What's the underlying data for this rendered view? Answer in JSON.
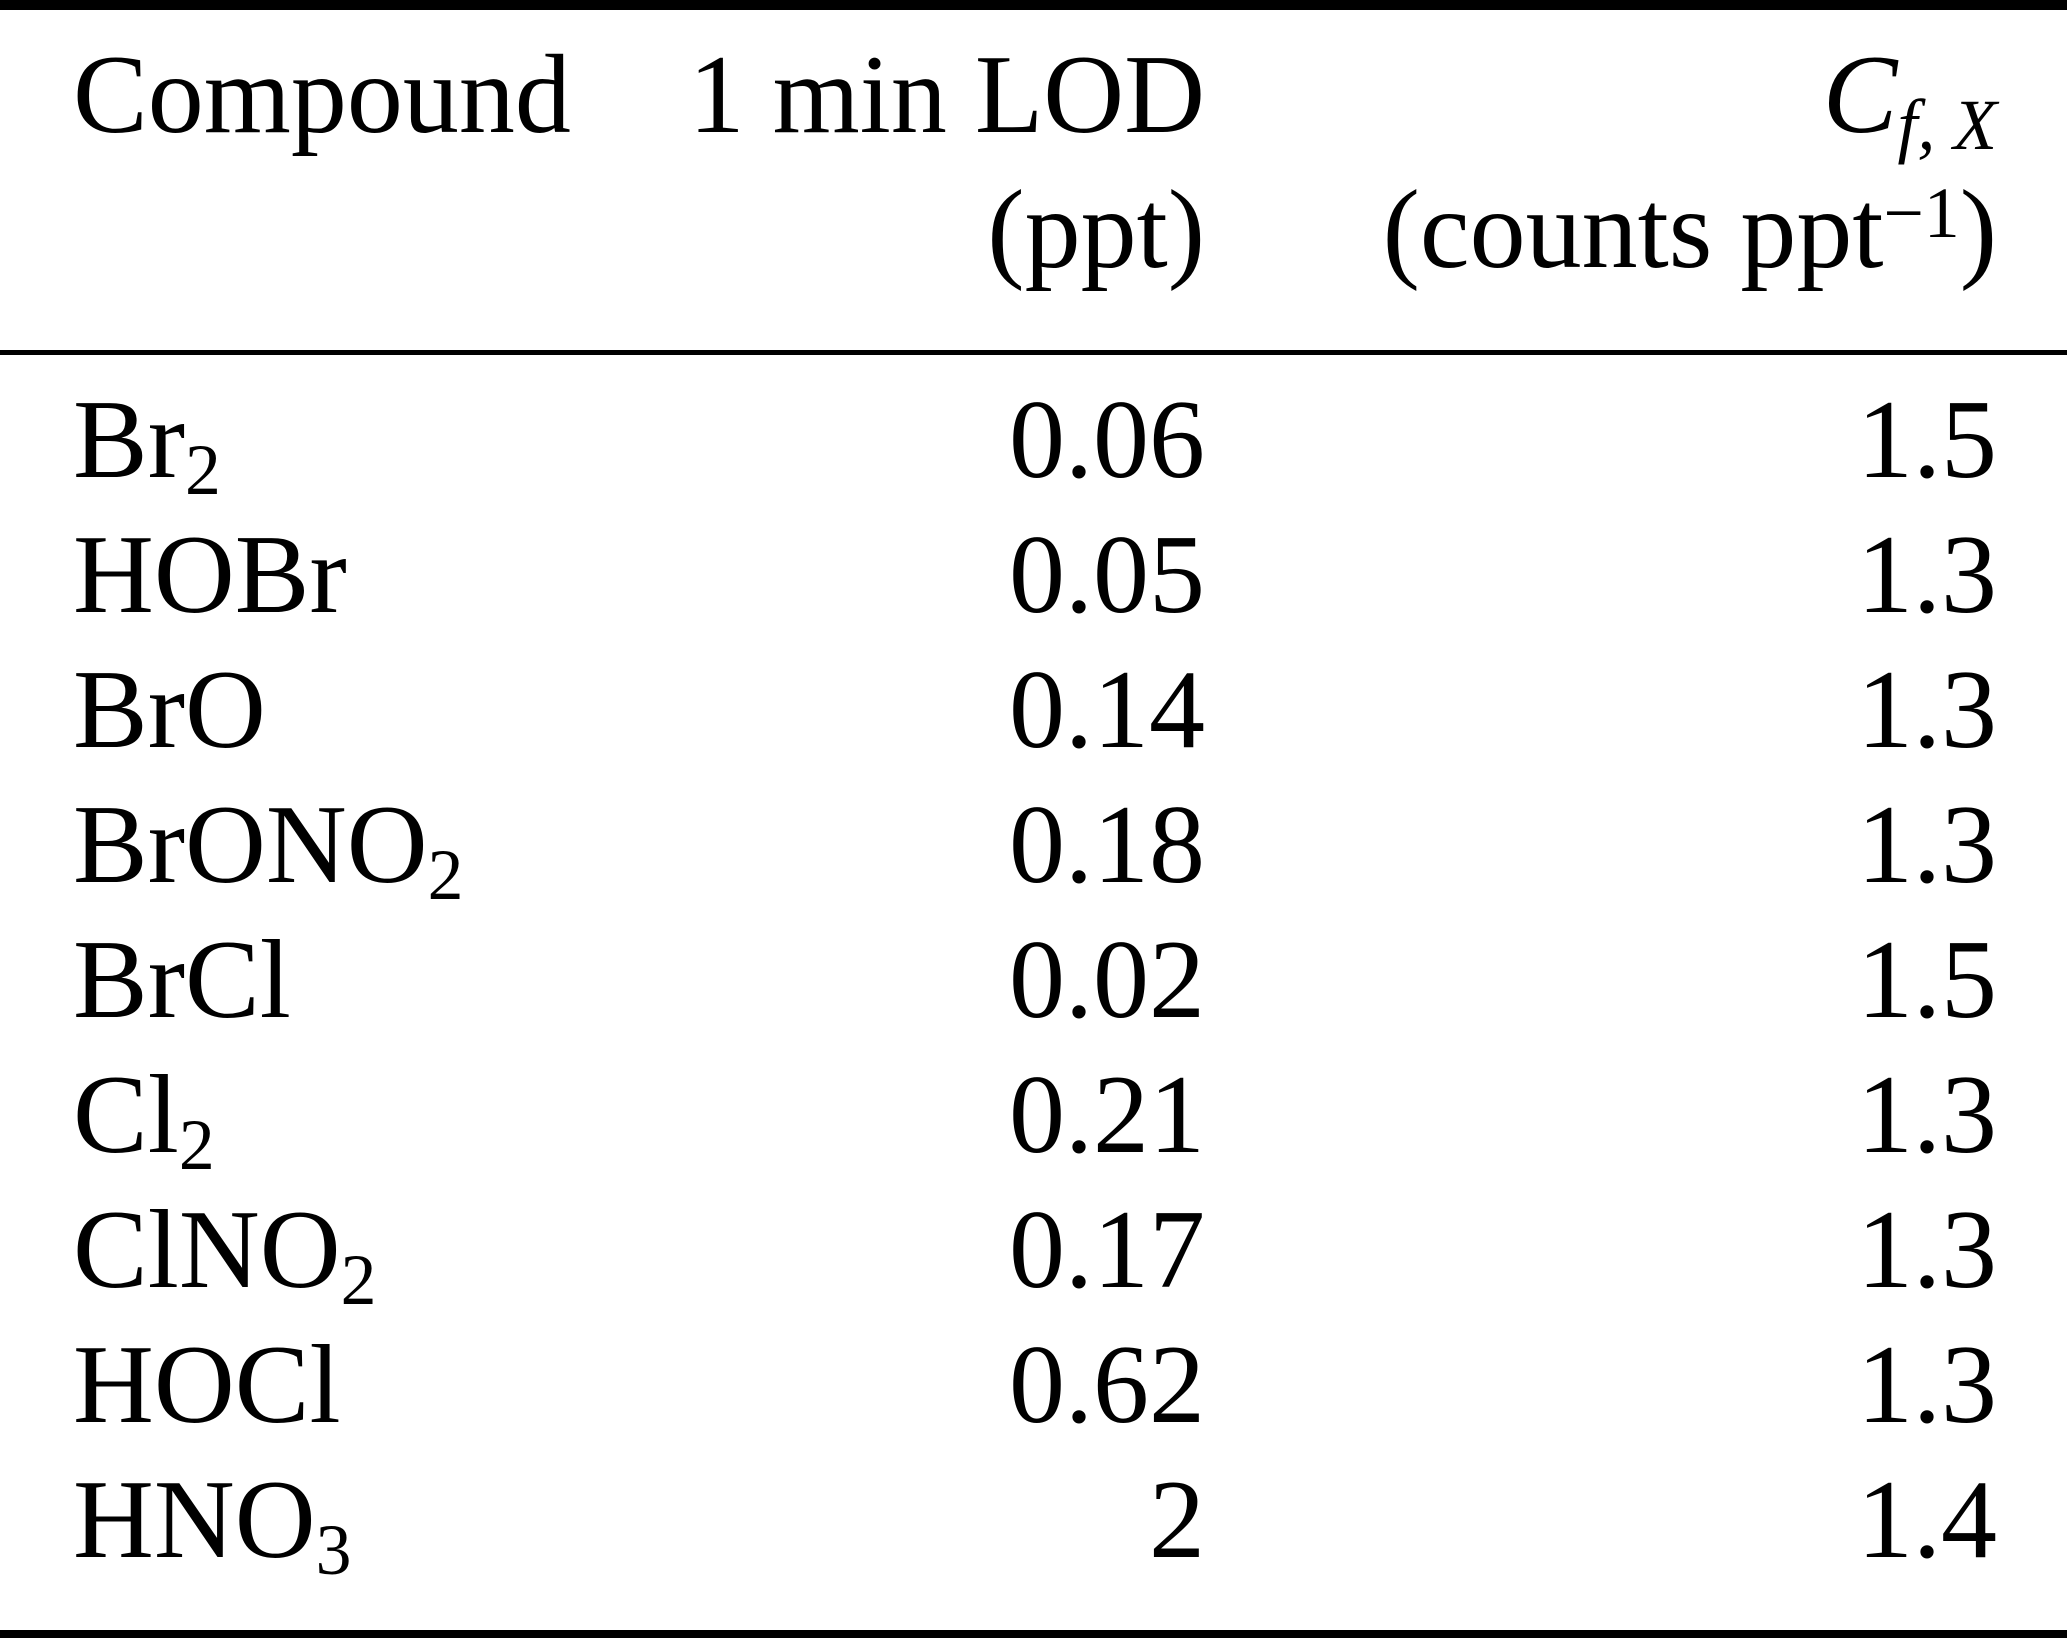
{
  "page": {
    "background_color": "#ffffff",
    "text_color": "#000000",
    "rule_color": "#000000"
  },
  "table": {
    "header": {
      "col1_title": [
        {
          "t": "Compound"
        }
      ],
      "col2_title": [
        {
          "t": "1 min LOD"
        }
      ],
      "col2_unit": [
        {
          "t": "(ppt)"
        }
      ],
      "col3_title": [
        {
          "t": "C",
          "italic": true
        },
        {
          "t": "f, X",
          "sub": true,
          "italic": true
        }
      ],
      "col3_unit": [
        {
          "t": "(counts ppt"
        },
        {
          "t": "−1",
          "sup": true
        },
        {
          "t": ")"
        }
      ]
    },
    "rows": [
      {
        "compound": [
          {
            "t": "Br"
          },
          {
            "t": "2",
            "sub": true
          }
        ],
        "lod": "0.06",
        "cf": "1.5"
      },
      {
        "compound": [
          {
            "t": "HOBr"
          }
        ],
        "lod": "0.05",
        "cf": "1.3"
      },
      {
        "compound": [
          {
            "t": "BrO"
          }
        ],
        "lod": "0.14",
        "cf": "1.3"
      },
      {
        "compound": [
          {
            "t": "BrONO"
          },
          {
            "t": "2",
            "sub": true
          }
        ],
        "lod": "0.18",
        "cf": "1.3"
      },
      {
        "compound": [
          {
            "t": "BrCl"
          }
        ],
        "lod": "0.02",
        "cf": "1.5"
      },
      {
        "compound": [
          {
            "t": "Cl"
          },
          {
            "t": "2",
            "sub": true
          }
        ],
        "lod": "0.21",
        "cf": "1.3"
      },
      {
        "compound": [
          {
            "t": "ClNO"
          },
          {
            "t": "2",
            "sub": true
          }
        ],
        "lod": "0.17",
        "cf": "1.3"
      },
      {
        "compound": [
          {
            "t": "HOCl"
          }
        ],
        "lod": "0.62",
        "cf": "1.3"
      },
      {
        "compound": [
          {
            "t": "HNO"
          },
          {
            "t": "3",
            "sub": true
          }
        ],
        "lod": "2",
        "cf": "1.4"
      }
    ]
  },
  "chart_data": {
    "type": "table",
    "columns": [
      "Compound",
      "1 min LOD (ppt)",
      "C_f,X (counts ppt−1)"
    ],
    "rows": [
      [
        "Br2",
        "0.06",
        "1.5"
      ],
      [
        "HOBr",
        "0.05",
        "1.3"
      ],
      [
        "BrO",
        "0.14",
        "1.3"
      ],
      [
        "BrONO2",
        "0.18",
        "1.3"
      ],
      [
        "BrCl",
        "0.02",
        "1.5"
      ],
      [
        "Cl2",
        "0.21",
        "1.3"
      ],
      [
        "ClNO2",
        "0.17",
        "1.3"
      ],
      [
        "HOCl",
        "0.62",
        "1.3"
      ],
      [
        "HNO3",
        "2",
        "1.4"
      ]
    ]
  }
}
